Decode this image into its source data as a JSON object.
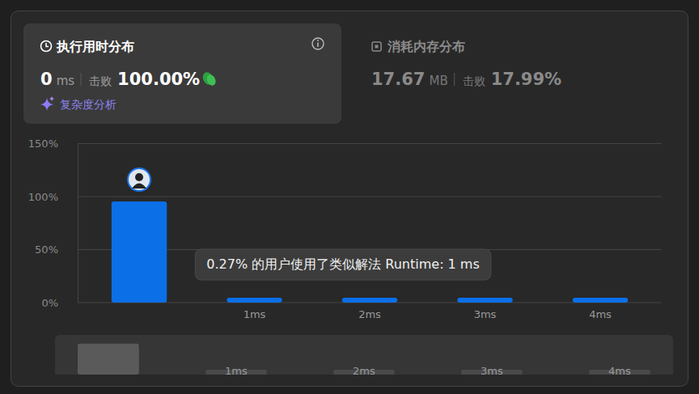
{
  "header": {
    "runtime": {
      "title": "执行用时分布",
      "value": 0,
      "unit": "ms",
      "beats_label": "击败",
      "beats": {
        "value": 100,
        "label": "100.00%"
      },
      "link": "复杂度分析"
    },
    "memory": {
      "title": "消耗内存分布",
      "value": 17.67,
      "unit": "MB",
      "beats_label": "击败",
      "beats": {
        "value": 17.99,
        "label": "17.99%"
      }
    }
  },
  "chart_data": {
    "type": "bar",
    "categories": [
      null,
      "1ms",
      "2ms",
      "3ms",
      "4ms"
    ],
    "values": [
      95.4,
      4.6,
      4.6,
      4.6,
      4.6
    ],
    "color": "#0b6fe8",
    "ylim": [
      0,
      150
    ],
    "yticks": [
      {
        "value": 0,
        "label": "0%"
      },
      {
        "value": 50,
        "label": "50%"
      },
      {
        "value": 100,
        "label": "100%"
      },
      {
        "value": 150,
        "label": "150%"
      }
    ],
    "grid": true,
    "annotations": [
      "0.27% 的用户使用了类似解法 Runtime: 1 ms"
    ]
  }
}
